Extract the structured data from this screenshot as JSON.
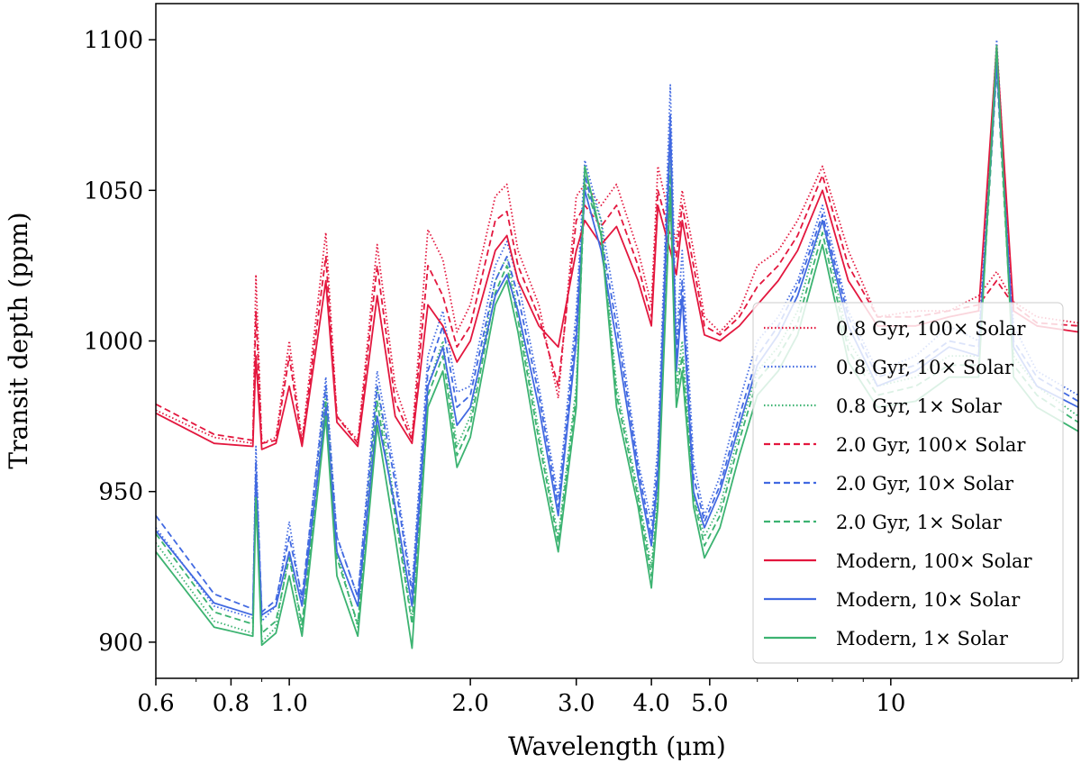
{
  "chart_data": {
    "type": "line",
    "title": "",
    "xlabel": "Wavelength (μm)",
    "ylabel": "Transit depth (ppm)",
    "xscale": "log",
    "xlim": [
      0.6,
      20.5
    ],
    "ylim": [
      888,
      1112
    ],
    "grid": false,
    "legend_position": "center-right",
    "xticks": [
      {
        "value": 0.6,
        "label": "0.6"
      },
      {
        "value": 0.8,
        "label": "0.8"
      },
      {
        "value": 1.0,
        "label": "1.0"
      },
      {
        "value": 2.0,
        "label": "2.0"
      },
      {
        "value": 3.0,
        "label": "3.0"
      },
      {
        "value": 4.0,
        "label": "4.0"
      },
      {
        "value": 5.0,
        "label": "5.0"
      },
      {
        "value": 10,
        "label": "10"
      }
    ],
    "yticks": [
      {
        "value": 900,
        "label": "900"
      },
      {
        "value": 950,
        "label": "950"
      },
      {
        "value": 1000,
        "label": "1000"
      },
      {
        "value": 1050,
        "label": "1050"
      },
      {
        "value": 1100,
        "label": "1100"
      }
    ],
    "x": [
      0.6,
      0.75,
      0.87,
      0.88,
      0.9,
      0.95,
      1.0,
      1.05,
      1.15,
      1.2,
      1.3,
      1.4,
      1.5,
      1.6,
      1.7,
      1.8,
      1.9,
      2.0,
      2.2,
      2.3,
      2.4,
      2.6,
      2.8,
      3.0,
      3.1,
      3.3,
      3.5,
      3.8,
      4.0,
      4.1,
      4.3,
      4.4,
      4.5,
      4.7,
      4.9,
      5.2,
      5.6,
      6.0,
      6.5,
      7.0,
      7.7,
      8.5,
      9.5,
      11,
      12.5,
      14,
      15,
      16,
      17.5,
      20.5
    ],
    "series": [
      {
        "name": "0.8 Gyr, 100× Solar",
        "color": "#e3173e",
        "style": "dotted",
        "values": [
          977,
          968,
          966,
          1022,
          966,
          968,
          1000,
          967,
          1036,
          975,
          967,
          1032,
          985,
          968,
          1037,
          1027,
          1003,
          1012,
          1048,
          1052,
          1030,
          1012,
          981,
          1048,
          1052,
          1045,
          1052,
          1030,
          1012,
          1058,
          1040,
          1033,
          1050,
          1030,
          1008,
          1003,
          1010,
          1025,
          1030,
          1040,
          1058,
          1030,
          1008,
          1010,
          1010,
          1015,
          1023,
          1013,
          1008,
          1006
        ]
      },
      {
        "name": "0.8 Gyr, 10× Solar",
        "color": "#4169e1",
        "style": "dotted",
        "values": [
          938,
          912,
          908,
          965,
          907,
          912,
          940,
          913,
          988,
          935,
          915,
          990,
          956,
          918,
          995,
          1010,
          983,
          985,
          1025,
          1033,
          1020,
          985,
          948,
          1010,
          1060,
          1040,
          1010,
          960,
          940,
          965,
          1085,
          1000,
          1030,
          960,
          942,
          955,
          980,
          1000,
          1008,
          1020,
          1045,
          1010,
          990,
          995,
          1005,
          1000,
          1100,
          1005,
          990,
          982
        ]
      },
      {
        "name": "0.8 Gyr, 1× Solar",
        "color": "#3cb371",
        "style": "dotted",
        "values": [
          933,
          907,
          903,
          955,
          900,
          905,
          930,
          904,
          983,
          930,
          905,
          985,
          945,
          907,
          985,
          1000,
          965,
          975,
          1020,
          1028,
          1010,
          970,
          935,
          985,
          1055,
          1040,
          985,
          950,
          925,
          950,
          1060,
          985,
          1000,
          950,
          935,
          945,
          970,
          990,
          998,
          1010,
          1040,
          1000,
          985,
          988,
          995,
          995,
          1095,
          995,
          985,
          975
        ]
      },
      {
        "name": "2.0 Gyr, 100× Solar",
        "color": "#e3173e",
        "style": "dashed",
        "values": [
          979,
          969,
          967,
          1010,
          966,
          967,
          995,
          966,
          1028,
          975,
          966,
          1025,
          980,
          967,
          1025,
          1015,
          998,
          1005,
          1040,
          1043,
          1025,
          1008,
          985,
          1040,
          1045,
          1038,
          1045,
          1025,
          1008,
          1050,
          1035,
          1028,
          1045,
          1025,
          1005,
          1002,
          1008,
          1018,
          1025,
          1035,
          1055,
          1025,
          1008,
          1008,
          1010,
          1012,
          1020,
          1012,
          1006,
          1005
        ]
      },
      {
        "name": "2.0 Gyr, 10× Solar",
        "color": "#4169e1",
        "style": "dashed",
        "values": [
          942,
          916,
          911,
          960,
          910,
          914,
          935,
          915,
          985,
          935,
          915,
          985,
          953,
          916,
          990,
          1005,
          978,
          982,
          1020,
          1028,
          1015,
          982,
          945,
          1005,
          1055,
          1035,
          1005,
          958,
          935,
          960,
          1075,
          995,
          1020,
          955,
          940,
          952,
          975,
          995,
          1005,
          1018,
          1042,
          1008,
          988,
          992,
          1000,
          998,
          1095,
          1000,
          988,
          980
        ]
      },
      {
        "name": "2.0 Gyr, 1× Solar",
        "color": "#3cb371",
        "style": "dashed",
        "values": [
          936,
          910,
          906,
          952,
          903,
          907,
          928,
          906,
          980,
          928,
          906,
          980,
          942,
          906,
          982,
          995,
          962,
          972,
          1016,
          1025,
          1007,
          967,
          933,
          982,
          1052,
          1036,
          982,
          948,
          922,
          948,
          1055,
          982,
          995,
          948,
          932,
          942,
          967,
          987,
          995,
          1006,
          1036,
          997,
          982,
          985,
          992,
          992,
          1090,
          992,
          982,
          973
        ]
      },
      {
        "name": "Modern, 100× Solar",
        "color": "#e3173e",
        "style": "solid",
        "values": [
          976,
          966,
          965,
          995,
          964,
          966,
          985,
          965,
          1020,
          973,
          965,
          1015,
          975,
          966,
          1012,
          1005,
          993,
          1000,
          1030,
          1035,
          1020,
          1005,
          998,
          1030,
          1040,
          1032,
          1038,
          1020,
          1005,
          1045,
          1030,
          1022,
          1040,
          1020,
          1002,
          1000,
          1005,
          1012,
          1020,
          1030,
          1050,
          1020,
          1005,
          1005,
          1008,
          1010,
          1098,
          1010,
          1005,
          1003
        ]
      },
      {
        "name": "Modern, 10× Solar",
        "color": "#4169e1",
        "style": "solid",
        "values": [
          937,
          913,
          909,
          955,
          909,
          912,
          930,
          912,
          978,
          930,
          912,
          975,
          945,
          912,
          985,
          998,
          972,
          978,
          1015,
          1022,
          1010,
          978,
          942,
          1000,
          1050,
          1030,
          1000,
          955,
          932,
          955,
          1070,
          990,
          1015,
          950,
          938,
          950,
          972,
          992,
          1002,
          1015,
          1040,
          1005,
          985,
          990,
          998,
          995,
          1092,
          998,
          985,
          978
        ]
      },
      {
        "name": "Modern, 1× Solar",
        "color": "#3cb371",
        "style": "solid",
        "values": [
          930,
          905,
          902,
          948,
          899,
          903,
          922,
          902,
          975,
          922,
          902,
          972,
          935,
          898,
          978,
          990,
          958,
          968,
          1012,
          1020,
          1003,
          962,
          930,
          978,
          1058,
          1035,
          978,
          945,
          918,
          945,
          1050,
          978,
          990,
          945,
          928,
          938,
          962,
          982,
          990,
          1002,
          1032,
          993,
          978,
          980,
          988,
          988,
          1098,
          988,
          978,
          970
        ]
      }
    ]
  }
}
